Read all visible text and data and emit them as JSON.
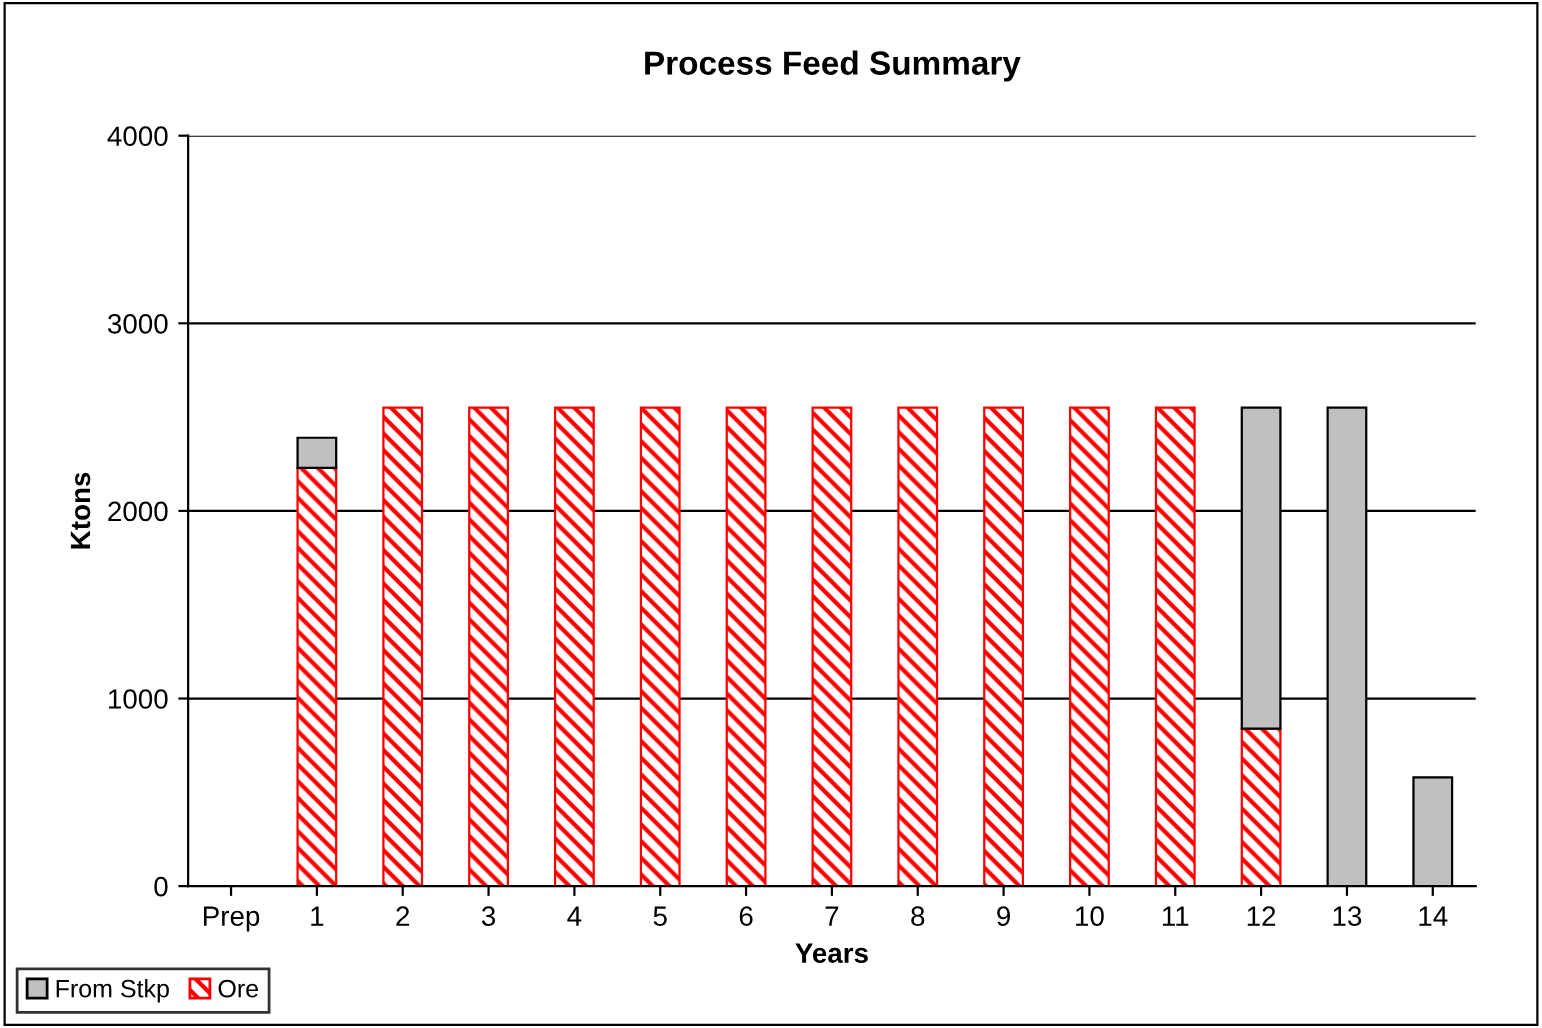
{
  "chart_data": {
    "type": "bar",
    "title": "Process Feed Summary",
    "xlabel": "Years",
    "ylabel": "Ktons",
    "categories": [
      "Prep",
      "1",
      "2",
      "3",
      "4",
      "5",
      "6",
      "7",
      "8",
      "9",
      "10",
      "11",
      "12",
      "13",
      "14"
    ],
    "stacked": true,
    "series": [
      {
        "name": "Ore",
        "color": "#ff0000",
        "values": [
          null,
          2230,
          2550,
          2550,
          2550,
          2550,
          2550,
          2550,
          2550,
          2550,
          2550,
          2550,
          840,
          null,
          null
        ]
      },
      {
        "name": "From Stkp",
        "color": "#c0c0c0",
        "values": [
          null,
          160,
          null,
          null,
          null,
          null,
          null,
          null,
          null,
          null,
          null,
          null,
          1710,
          2550,
          580
        ]
      }
    ],
    "ylim": [
      0,
      4000
    ],
    "yticks": [
      0,
      1000,
      2000,
      3000,
      4000
    ],
    "grid": "y",
    "legend": "bottom left"
  }
}
